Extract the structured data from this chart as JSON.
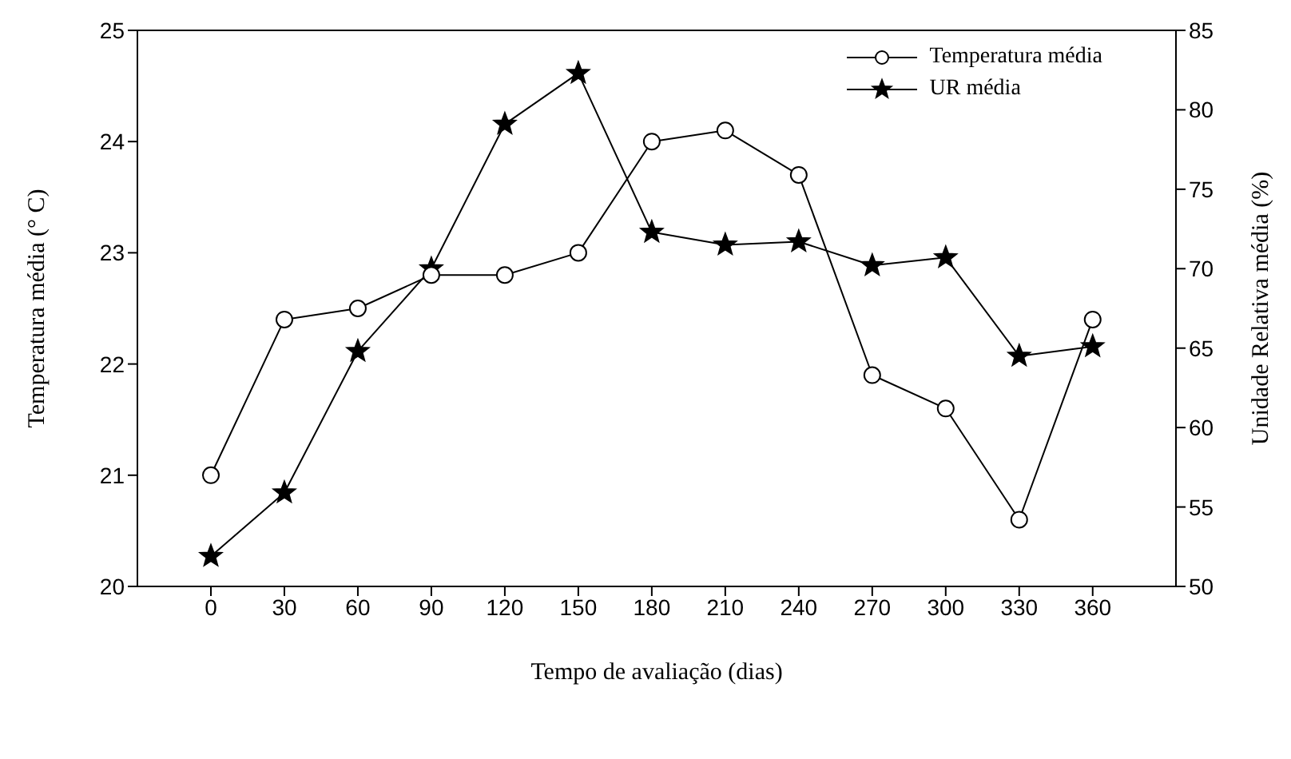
{
  "chart_data": {
    "type": "line",
    "xlabel": "Tempo de avaliação (dias)",
    "ylabel": "Temperatura média (° C)",
    "y2label": "Unidade Relativa média (%)",
    "x": [
      0,
      30,
      60,
      90,
      120,
      150,
      180,
      210,
      240,
      270,
      300,
      330,
      360
    ],
    "xlim": [
      -30,
      394
    ],
    "xticks": [
      0,
      30,
      60,
      90,
      120,
      150,
      180,
      210,
      240,
      270,
      300,
      330,
      360
    ],
    "ylim": [
      20,
      25
    ],
    "yticks": [
      20,
      21,
      22,
      23,
      24,
      25
    ],
    "y2lim": [
      50,
      85
    ],
    "y2ticks": [
      50,
      55,
      60,
      65,
      70,
      75,
      80,
      85
    ],
    "legend": "top right",
    "grid": false,
    "line_style": "solid",
    "series": [
      {
        "name": "Temperatura média",
        "color": "#000000",
        "marker": "circle",
        "values": [
          21.0,
          22.4,
          22.5,
          22.8,
          22.8,
          23.0,
          24.0,
          24.1,
          23.7,
          21.9,
          21.6,
          20.6,
          22.4
        ]
      },
      {
        "name": "UR média",
        "color": "#000000",
        "marker": "star",
        "axis": "y2",
        "values": [
          51.9,
          55.9,
          64.8,
          70.0,
          79.1,
          82.3,
          72.3,
          71.5,
          71.7,
          70.2,
          70.7,
          64.5,
          65.1
        ]
      }
    ]
  }
}
